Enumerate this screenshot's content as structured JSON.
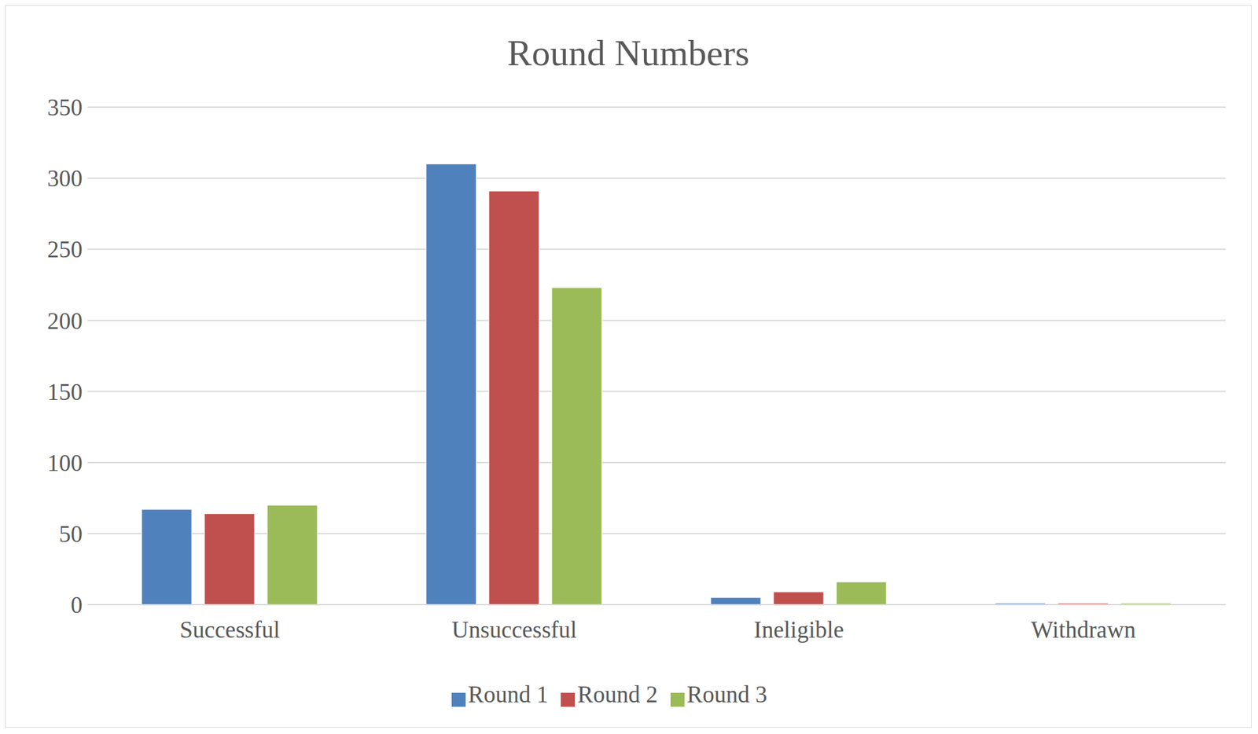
{
  "chart_data": {
    "type": "bar",
    "title": "Round Numbers",
    "categories": [
      "Successful",
      "Unsuccessful",
      "Ineligible",
      "Withdrawn"
    ],
    "series": [
      {
        "name": "Round 1",
        "color": "#4f81bd",
        "values": [
          67,
          310,
          5,
          1
        ]
      },
      {
        "name": "Round 2",
        "color": "#c0504d",
        "values": [
          64,
          291,
          9,
          1
        ]
      },
      {
        "name": "Round 3",
        "color": "#9bbb59",
        "values": [
          70,
          223,
          16,
          1
        ]
      }
    ],
    "ylim": [
      0,
      350
    ],
    "yticks": [
      0,
      50,
      100,
      150,
      200,
      250,
      300,
      350
    ],
    "grid": true,
    "legend": "bottom"
  }
}
